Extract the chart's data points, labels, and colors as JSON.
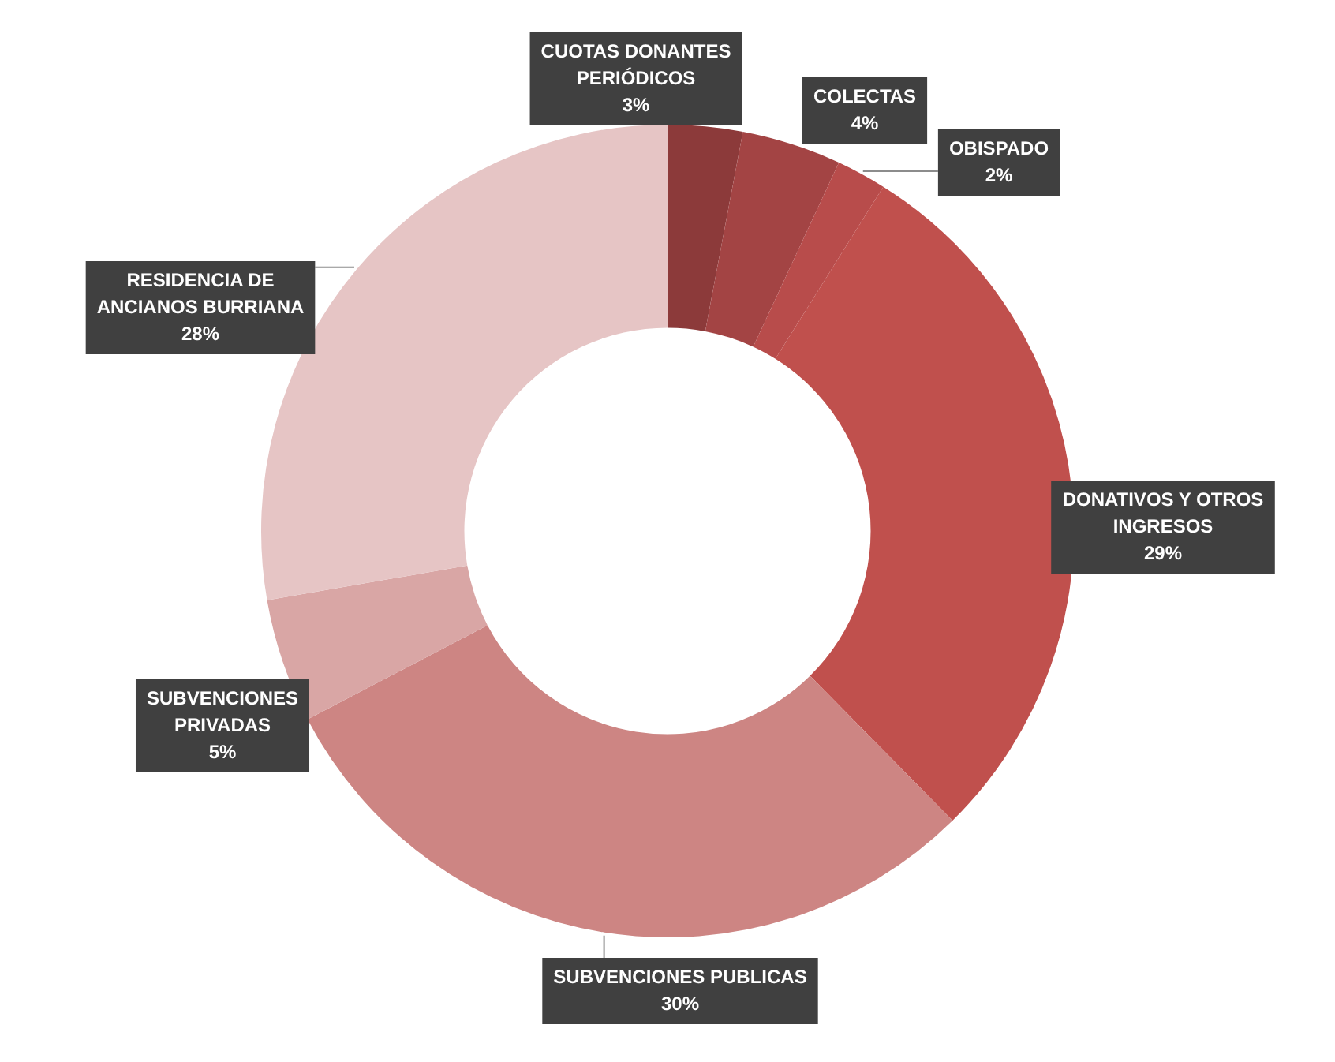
{
  "chart_data": {
    "type": "donut",
    "categories": [
      "CUOTAS DONANTES PERIÓDICOS",
      "COLECTAS",
      "OBISPADO",
      "DONATIVOS Y OTROS INGRESOS",
      "SUBVENCIONES PUBLICAS",
      "SUBVENCIONES PRIVADAS",
      "RESIDENCIA DE ANCIANOS BURRIANA"
    ],
    "values": [
      3,
      4,
      2,
      29,
      30,
      5,
      28
    ],
    "value_labels": [
      "3%",
      "4%",
      "2%",
      "29%",
      "30%",
      "5%",
      "28%"
    ],
    "colors": [
      "#8c3a3a",
      "#a34444",
      "#b84c4b",
      "#c0504d",
      "#cd8583",
      "#d9a6a5",
      "#e6c5c5"
    ],
    "legend": false
  }
}
